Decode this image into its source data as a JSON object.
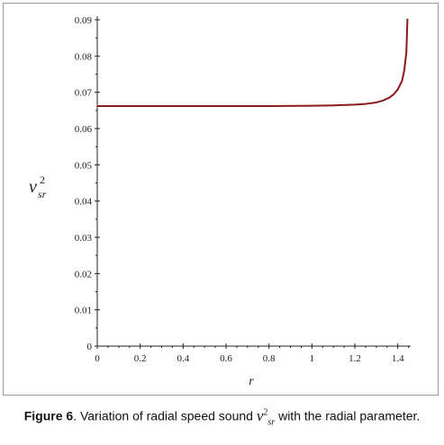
{
  "chart_data": {
    "type": "line",
    "xlabel": "r",
    "ylabel": {
      "base": "v",
      "sup": "2",
      "sub": "sr"
    },
    "xlim": [
      0,
      1.46
    ],
    "ylim": [
      0,
      0.09
    ],
    "x_ticks": [
      "0",
      "0.2",
      "0.4",
      "0.6",
      "0.8",
      "1",
      "1.2",
      "1.4"
    ],
    "y_ticks": [
      "0",
      "0.01",
      "0.02",
      "0.03",
      "0.04",
      "0.05",
      "0.06",
      "0.07",
      "0.08",
      "0.09"
    ],
    "series": [
      {
        "color": "#8b1a1a",
        "x": [
          0,
          0.2,
          0.4,
          0.6,
          0.8,
          1.0,
          1.1,
          1.2,
          1.25,
          1.3,
          1.33,
          1.36,
          1.38,
          1.4,
          1.42,
          1.43,
          1.44,
          1.445
        ],
        "y": [
          0.0662,
          0.0662,
          0.0662,
          0.0662,
          0.0662,
          0.0663,
          0.0664,
          0.0666,
          0.0668,
          0.0672,
          0.0677,
          0.0685,
          0.0694,
          0.0708,
          0.0732,
          0.076,
          0.081,
          0.0903
        ]
      }
    ],
    "grid": false
  },
  "caption": {
    "label": "Figure 6",
    "text_before": ". Variation of radial speed sound ",
    "symbol_base": "v",
    "symbol_sup": "2",
    "symbol_sub": "sr",
    "text_after": " with the radial parameter."
  }
}
